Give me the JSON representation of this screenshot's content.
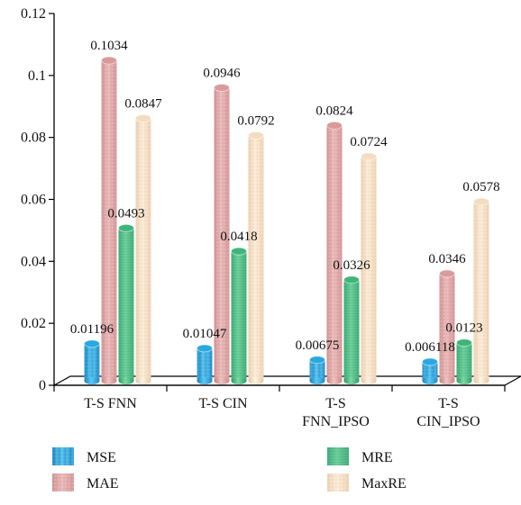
{
  "chart_data": {
    "type": "bar",
    "title": "",
    "xlabel": "",
    "ylabel": "",
    "ylim": [
      0,
      0.12
    ],
    "yticks": [
      "0",
      "0.02",
      "0.04",
      "0.06",
      "0.08",
      "0.1",
      "0.12"
    ],
    "categories": [
      [
        "T-S FNN"
      ],
      [
        "T-S CIN"
      ],
      [
        "T-S",
        "FNN_IPSO"
      ],
      [
        "T-S",
        "CIN_IPSO"
      ]
    ],
    "series": [
      {
        "name": "MSE",
        "values": [
          0.01196,
          0.01047,
          0.00675,
          0.006118
        ],
        "labels": [
          "0.01196",
          "0.01047",
          "0.00675",
          "0.006118"
        ],
        "color": "#2aa8e0"
      },
      {
        "name": "MAE",
        "values": [
          0.1034,
          0.0946,
          0.0824,
          0.0346
        ],
        "labels": [
          "0.1034",
          "0.0946",
          "0.0824",
          "0.0346"
        ],
        "color": "#d99a9a"
      },
      {
        "name": "MRE",
        "values": [
          0.0493,
          0.0418,
          0.0326,
          0.0123
        ],
        "labels": [
          "0.0493",
          "0.0418",
          "0.0326",
          "0.0123"
        ],
        "color": "#3fb57a"
      },
      {
        "name": "MaxRE",
        "values": [
          0.0847,
          0.0792,
          0.0724,
          0.0578
        ],
        "labels": [
          "0.0847",
          "0.0792",
          "0.0724",
          "0.0578"
        ],
        "color": "#f4dcc0"
      }
    ],
    "legend_position": "bottom",
    "grid": false
  }
}
